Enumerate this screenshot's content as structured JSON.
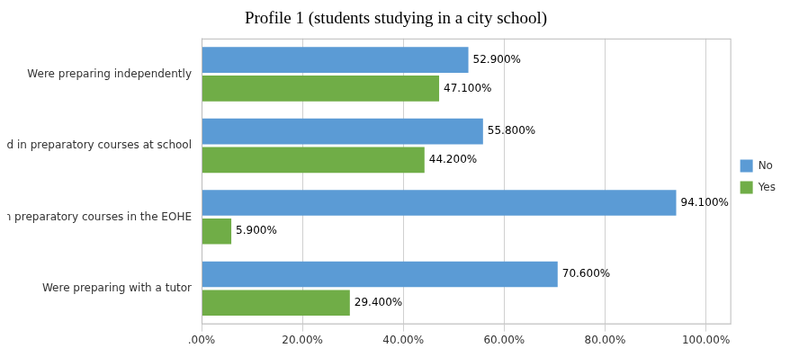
{
  "chart_data": {
    "type": "bar",
    "orientation": "horizontal",
    "title": "Profile 1 (students studying in a city school)",
    "categories": [
      "Were preparing independently",
      "Were engaged in preparatory courses at school",
      "Were engaged in preparatory courses in the EOHE",
      "Were preparing with a tutor"
    ],
    "series": [
      {
        "name": "No",
        "color": "#5B9BD5",
        "values": [
          52.9,
          55.8,
          94.1,
          70.6
        ],
        "value_labels": [
          "52.900%",
          "55.800%",
          "94.100%",
          "70.600%"
        ]
      },
      {
        "name": "Yes",
        "color": "#70AD47",
        "values": [
          47.1,
          44.2,
          5.9,
          29.4
        ],
        "value_labels": [
          "47.100%",
          "44.200%",
          "5.900%",
          "29.400%"
        ]
      }
    ],
    "xlim": [
      0,
      105
    ],
    "xticks": [
      {
        "value": 0,
        "label": ".00%"
      },
      {
        "value": 20,
        "label": "20.00%"
      },
      {
        "value": 40,
        "label": "40.00%"
      },
      {
        "value": 60,
        "label": "60.00%"
      },
      {
        "value": 80,
        "label": "80.00%"
      },
      {
        "value": 100,
        "label": "100.00%"
      }
    ],
    "grid": true,
    "legend": "right",
    "data_labels": true
  }
}
